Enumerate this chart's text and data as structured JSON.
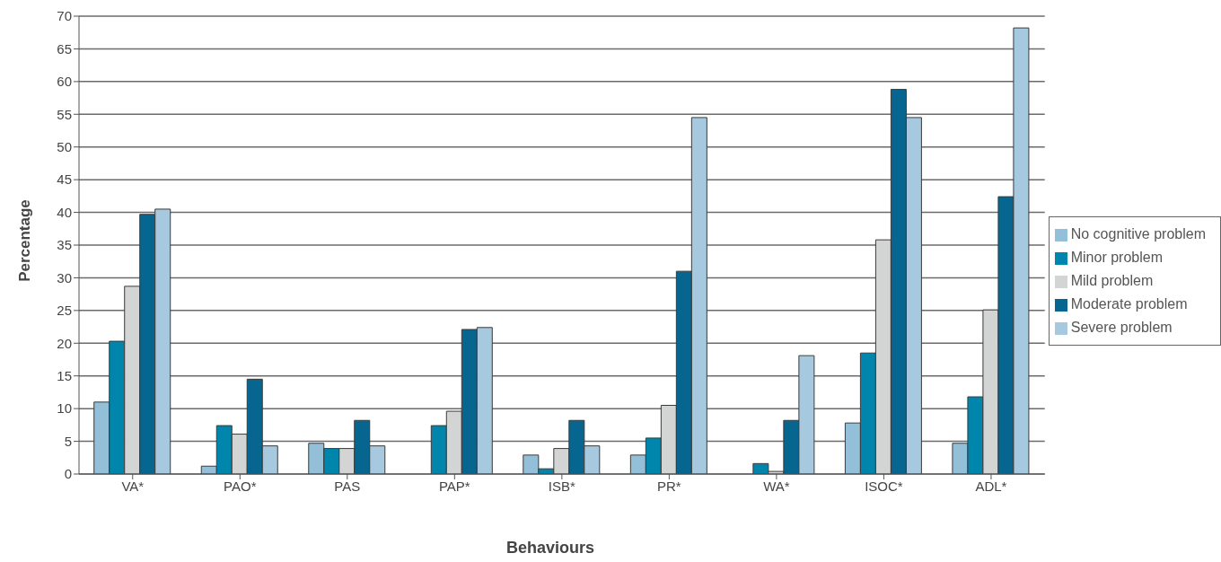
{
  "chart_data": {
    "type": "bar",
    "xlabel": "Behaviours",
    "ylabel": "Percentage",
    "categories": [
      "VA*",
      "PAO*",
      "PAS",
      "PAP*",
      "ISB*",
      "PR*",
      "WA*",
      "ISOC*",
      "ADL*"
    ],
    "series": [
      {
        "name": "No cognitive problem",
        "color": "#93c0d8",
        "values": [
          11,
          1.2,
          4.7,
          0,
          2.9,
          2.9,
          0,
          7.8,
          4.7
        ]
      },
      {
        "name": "Minor problem",
        "color": "#0086ad",
        "values": [
          20.3,
          7.4,
          3.9,
          7.4,
          0.8,
          5.5,
          1.6,
          18.5,
          11.8
        ]
      },
      {
        "name": "Mild problem",
        "color": "#d3d5d5",
        "values": [
          28.7,
          6.1,
          3.9,
          9.6,
          3.9,
          10.5,
          0.4,
          35.8,
          25.1
        ]
      },
      {
        "name": "Moderate problem",
        "color": "#07668f",
        "values": [
          39.7,
          14.5,
          8.2,
          22.1,
          8.2,
          31,
          8.2,
          58.8,
          42.4
        ]
      },
      {
        "name": "Severe problem",
        "color": "#a6c9df",
        "values": [
          40.5,
          4.3,
          4.3,
          22.4,
          4.3,
          54.5,
          18.1,
          54.5,
          68.2
        ]
      }
    ],
    "ylim": [
      0,
      70
    ],
    "yticks": [
      0,
      5,
      10,
      15,
      20,
      25,
      30,
      35,
      40,
      45,
      50,
      55,
      60,
      65,
      70
    ],
    "grid": "y",
    "legend": "right"
  }
}
